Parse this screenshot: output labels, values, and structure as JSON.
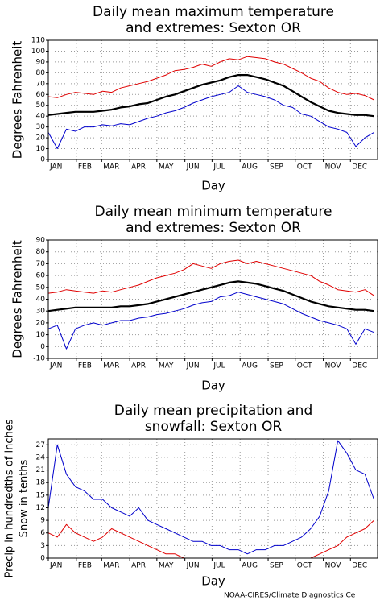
{
  "chart_data": [
    {
      "type": "line",
      "title": [
        "Daily mean maximum temperature",
        "and extremes: Sexton OR"
      ],
      "xlabel": "Day",
      "ylabel": [
        "Degrees Fahrenheit"
      ],
      "xlim": [
        1,
        365
      ],
      "ylim": [
        0,
        110
      ],
      "xticks": [
        {
          "value": 1,
          "label": "JAN"
        },
        {
          "value": 32,
          "label": "FEB"
        },
        {
          "value": 60,
          "label": "MAR"
        },
        {
          "value": 91,
          "label": "APR"
        },
        {
          "value": 121,
          "label": "MAY"
        },
        {
          "value": 152,
          "label": "JUN"
        },
        {
          "value": 182,
          "label": "JUL"
        },
        {
          "value": 213,
          "label": "AUG"
        },
        {
          "value": 244,
          "label": "SEP"
        },
        {
          "value": 274,
          "label": "OCT"
        },
        {
          "value": 305,
          "label": "NOV"
        },
        {
          "value": 335,
          "label": "DEC"
        }
      ],
      "yticks": [
        0,
        10,
        20,
        30,
        40,
        50,
        60,
        70,
        80,
        90,
        100,
        110
      ],
      "grid": true,
      "x": [
        1,
        11,
        21,
        31,
        41,
        51,
        61,
        71,
        81,
        91,
        101,
        111,
        121,
        131,
        141,
        151,
        161,
        171,
        181,
        191,
        201,
        211,
        221,
        231,
        241,
        251,
        261,
        271,
        281,
        291,
        301,
        311,
        321,
        331,
        341,
        351,
        361
      ],
      "series": [
        {
          "color": "#e00000",
          "width": 1,
          "values": [
            58,
            57,
            60,
            62,
            61,
            60,
            63,
            62,
            66,
            68,
            70,
            72,
            75,
            78,
            82,
            83,
            85,
            88,
            86,
            90,
            93,
            92,
            95,
            94,
            93,
            90,
            88,
            84,
            80,
            75,
            72,
            66,
            62,
            60,
            61,
            59,
            55
          ]
        },
        {
          "color": "#000000",
          "width": 2.2,
          "values": [
            41,
            42,
            43,
            44,
            44,
            44,
            45,
            46,
            48,
            49,
            51,
            52,
            55,
            58,
            60,
            63,
            66,
            69,
            71,
            73,
            76,
            78,
            78,
            76,
            74,
            71,
            68,
            63,
            58,
            53,
            49,
            45,
            43,
            42,
            41,
            41,
            40
          ]
        },
        {
          "color": "#0000cc",
          "width": 1,
          "values": [
            25,
            10,
            28,
            26,
            30,
            30,
            32,
            31,
            33,
            32,
            35,
            38,
            40,
            43,
            45,
            48,
            52,
            55,
            58,
            60,
            62,
            68,
            62,
            60,
            58,
            55,
            50,
            48,
            42,
            40,
            35,
            30,
            28,
            25,
            12,
            20,
            25
          ]
        }
      ]
    },
    {
      "type": "line",
      "title": [
        "Daily mean minimum temperature",
        "and extremes: Sexton OR"
      ],
      "xlabel": "Day",
      "ylabel": [
        "Degrees Fahrenheit"
      ],
      "xlim": [
        1,
        365
      ],
      "ylim": [
        -10,
        90
      ],
      "xticks": [
        {
          "value": 1,
          "label": "JAN"
        },
        {
          "value": 32,
          "label": "FEB"
        },
        {
          "value": 60,
          "label": "MAR"
        },
        {
          "value": 91,
          "label": "APR"
        },
        {
          "value": 121,
          "label": "MAY"
        },
        {
          "value": 152,
          "label": "JUN"
        },
        {
          "value": 182,
          "label": "JUL"
        },
        {
          "value": 213,
          "label": "AUG"
        },
        {
          "value": 244,
          "label": "SEP"
        },
        {
          "value": 274,
          "label": "OCT"
        },
        {
          "value": 305,
          "label": "NOV"
        },
        {
          "value": 335,
          "label": "DEC"
        }
      ],
      "yticks": [
        -10,
        0,
        10,
        20,
        30,
        40,
        50,
        60,
        70,
        80,
        90
      ],
      "grid": true,
      "x": [
        1,
        11,
        21,
        31,
        41,
        51,
        61,
        71,
        81,
        91,
        101,
        111,
        121,
        131,
        141,
        151,
        161,
        171,
        181,
        191,
        201,
        211,
        221,
        231,
        241,
        251,
        261,
        271,
        281,
        291,
        301,
        311,
        321,
        331,
        341,
        351,
        361
      ],
      "series": [
        {
          "color": "#e00000",
          "width": 1,
          "values": [
            45,
            46,
            48,
            47,
            46,
            45,
            47,
            46,
            48,
            50,
            52,
            55,
            58,
            60,
            62,
            65,
            70,
            68,
            66,
            70,
            72,
            73,
            70,
            72,
            70,
            68,
            66,
            64,
            62,
            60,
            55,
            52,
            48,
            47,
            46,
            48,
            43
          ]
        },
        {
          "color": "#000000",
          "width": 2.2,
          "values": [
            30,
            31,
            32,
            33,
            33,
            33,
            33,
            33,
            34,
            34,
            35,
            36,
            38,
            40,
            42,
            44,
            46,
            48,
            50,
            52,
            54,
            55,
            54,
            53,
            51,
            49,
            47,
            44,
            41,
            38,
            36,
            34,
            33,
            32,
            31,
            31,
            30
          ]
        },
        {
          "color": "#0000cc",
          "width": 1,
          "values": [
            15,
            18,
            -2,
            15,
            18,
            20,
            18,
            20,
            22,
            22,
            24,
            25,
            27,
            28,
            30,
            32,
            35,
            37,
            38,
            42,
            43,
            46,
            44,
            42,
            40,
            38,
            36,
            32,
            28,
            25,
            22,
            20,
            18,
            15,
            2,
            15,
            12
          ]
        }
      ]
    },
    {
      "type": "line",
      "title": [
        "Daily mean precipitation and",
        "snowfall: Sexton OR"
      ],
      "xlabel": "Day",
      "ylabel": [
        "Precip in hundredths of inches",
        "Snow in tenths"
      ],
      "xlim": [
        1,
        365
      ],
      "ylim": [
        0,
        28.4
      ],
      "xticks": [
        {
          "value": 1,
          "label": "JAN"
        },
        {
          "value": 32,
          "label": "FEB"
        },
        {
          "value": 60,
          "label": "MAR"
        },
        {
          "value": 91,
          "label": "APR"
        },
        {
          "value": 121,
          "label": "MAY"
        },
        {
          "value": 152,
          "label": "JUN"
        },
        {
          "value": 182,
          "label": "JUL"
        },
        {
          "value": 213,
          "label": "AUG"
        },
        {
          "value": 244,
          "label": "SEP"
        },
        {
          "value": 274,
          "label": "OCT"
        },
        {
          "value": 305,
          "label": "NOV"
        },
        {
          "value": 335,
          "label": "DEC"
        }
      ],
      "yticks": [
        0,
        3,
        6,
        9,
        12,
        15,
        18,
        21,
        24,
        27
      ],
      "grid": true,
      "x": [
        1,
        11,
        21,
        31,
        41,
        51,
        61,
        71,
        81,
        91,
        101,
        111,
        121,
        131,
        141,
        151,
        161,
        171,
        181,
        191,
        201,
        211,
        221,
        231,
        241,
        251,
        261,
        271,
        281,
        291,
        301,
        311,
        321,
        331,
        341,
        351,
        361
      ],
      "series": [
        {
          "color": "#0000cc",
          "width": 1,
          "values": [
            12,
            27,
            20,
            17,
            16,
            14,
            14,
            12,
            11,
            10,
            12,
            9,
            8,
            7,
            6,
            5,
            4,
            4,
            3,
            3,
            2,
            2,
            1,
            2,
            2,
            3,
            3,
            4,
            5,
            7,
            10,
            16,
            28,
            25,
            21,
            20,
            14
          ]
        },
        {
          "color": "#e00000",
          "width": 1,
          "values": [
            6,
            5,
            8,
            6,
            5,
            4,
            5,
            7,
            6,
            5,
            4,
            3,
            2,
            1,
            1,
            0,
            0,
            0,
            0,
            0,
            0,
            0,
            0,
            0,
            0,
            0,
            0,
            0,
            0,
            0,
            1,
            2,
            3,
            5,
            6,
            7,
            9
          ]
        }
      ]
    }
  ],
  "footer": "NOAA-CIRES/Climate Diagnostics Ce"
}
